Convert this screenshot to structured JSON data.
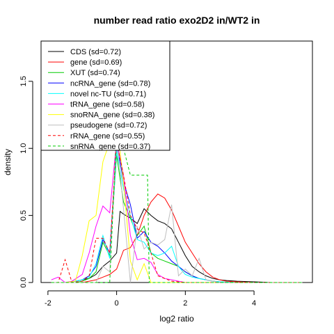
{
  "chart_data": {
    "type": "line",
    "title": "number read ratio exo2D2 in/WT2 in",
    "xlabel": "log2 ratio",
    "ylabel": "density",
    "xlim": [
      -2.2,
      5.7
    ],
    "ylim": [
      0,
      1.8
    ],
    "xticks": [
      {
        "value": -2,
        "label": "-2"
      },
      {
        "value": 0,
        "label": "0"
      },
      {
        "value": 2,
        "label": "2"
      },
      {
        "value": 4,
        "label": "4"
      }
    ],
    "yticks": [
      {
        "value": 0,
        "label": "0.0"
      },
      {
        "value": 0.5,
        "label": "0.5"
      },
      {
        "value": 1.0,
        "label": "1.0"
      },
      {
        "value": 1.5,
        "label": "1.5"
      }
    ],
    "grid": false,
    "legend_position": "top-left",
    "series": [
      {
        "name": "CDS (sd=0.72)",
        "color": "#000000",
        "dash": "solid",
        "x": [
          -1.9,
          -1.5,
          -1.2,
          -1.0,
          -0.8,
          -0.6,
          -0.4,
          -0.2,
          0.0,
          0.1,
          0.2,
          0.4,
          0.6,
          0.8,
          1.0,
          1.2,
          1.4,
          1.6,
          1.8,
          2.0,
          2.2,
          2.4,
          2.6,
          2.8,
          3.0,
          3.2,
          3.5,
          4.0,
          4.5,
          5.0,
          5.4
        ],
        "y": [
          0,
          0,
          0.01,
          0.02,
          0.03,
          0.06,
          0.12,
          0.16,
          0.22,
          0.53,
          0.51,
          0.48,
          0.44,
          0.55,
          0.5,
          0.46,
          0.44,
          0.4,
          0.3,
          0.2,
          0.12,
          0.08,
          0.05,
          0.03,
          0.02,
          0.015,
          0.01,
          0.005,
          0,
          0,
          0
        ]
      },
      {
        "name": "gene (sd=0.69)",
        "color": "#ff0000",
        "dash": "solid",
        "x": [
          -1.9,
          -1.5,
          -1.2,
          -1.0,
          -0.8,
          -0.6,
          -0.4,
          -0.2,
          0.0,
          0.2,
          0.4,
          0.6,
          0.8,
          1.0,
          1.2,
          1.4,
          1.6,
          1.8,
          2.0,
          2.2,
          2.4,
          2.6,
          2.8,
          3.0,
          3.2,
          3.5,
          4.0,
          4.5,
          5.0,
          5.4
        ],
        "y": [
          0,
          0,
          0,
          0,
          0.01,
          0.02,
          0.04,
          0.06,
          0.1,
          0.24,
          0.26,
          0.35,
          0.5,
          0.6,
          0.66,
          0.63,
          0.54,
          0.42,
          0.3,
          0.22,
          0.14,
          0.08,
          0.04,
          0.02,
          0.01,
          0.005,
          0,
          0,
          0,
          0
        ]
      },
      {
        "name": "XUT (sd=0.74)",
        "color": "#00cc00",
        "dash": "solid",
        "x": [
          -1.9,
          -1.5,
          -1.2,
          -1.0,
          -0.8,
          -0.6,
          -0.4,
          -0.2,
          0.0,
          0.2,
          0.4,
          0.6,
          0.8,
          1.0,
          1.2,
          1.4,
          1.6,
          1.8,
          2.0,
          2.2,
          2.4,
          2.6,
          2.8,
          3.0,
          3.5,
          4.0,
          5.0,
          5.4
        ],
        "y": [
          0,
          0,
          0,
          0.01,
          0.03,
          0.08,
          0.3,
          0.2,
          0.95,
          0.6,
          0.48,
          0.35,
          0.42,
          0.22,
          0.18,
          0.16,
          0.14,
          0.12,
          0.08,
          0.05,
          0.03,
          0.02,
          0.01,
          0.005,
          0,
          0,
          0,
          0
        ]
      },
      {
        "name": "ncRNA_gene (sd=0.78)",
        "color": "#0000ff",
        "dash": "solid",
        "x": [
          -1.9,
          -1.5,
          -1.2,
          -1.0,
          -0.8,
          -0.6,
          -0.4,
          -0.2,
          0.0,
          0.1,
          0.2,
          0.4,
          0.6,
          0.8,
          1.0,
          1.2,
          1.4,
          1.6,
          1.8,
          2.0,
          2.2,
          2.4,
          2.6,
          2.8,
          3.0,
          3.2,
          3.5,
          4.0,
          5.0,
          5.4
        ],
        "y": [
          0,
          0,
          0.01,
          0.02,
          0.05,
          0.12,
          0.32,
          0.22,
          1.02,
          0.9,
          0.75,
          0.58,
          0.33,
          0.38,
          0.3,
          0.27,
          0.22,
          0.16,
          0.12,
          0.08,
          0.05,
          0.03,
          0.02,
          0.01,
          0.005,
          0,
          0,
          0,
          0,
          0
        ]
      },
      {
        "name": "novel nc-TU (sd=0.71)",
        "color": "#00ffff",
        "dash": "solid",
        "x": [
          -1.9,
          -1.5,
          -1.2,
          -1.0,
          -0.8,
          -0.6,
          -0.4,
          -0.2,
          0.0,
          0.2,
          0.4,
          0.6,
          0.8,
          1.0,
          1.2,
          1.4,
          1.6,
          1.8,
          2.0,
          2.2,
          2.4,
          2.6,
          2.8,
          3.0,
          3.5,
          4.0,
          5.0,
          5.4
        ],
        "y": [
          0,
          0,
          0.01,
          0.02,
          0.04,
          0.14,
          0.35,
          0.18,
          0.98,
          0.7,
          0.5,
          0.32,
          0.3,
          0.22,
          0.2,
          0.22,
          0.27,
          0.12,
          0.06,
          0.04,
          0.03,
          0.02,
          0.01,
          0.005,
          0,
          0,
          0,
          0
        ]
      },
      {
        "name": "tRNA_gene (sd=0.58)",
        "color": "#ff00ff",
        "dash": "solid",
        "x": [
          -1.9,
          -1.7,
          -1.5,
          -1.3,
          -1.0,
          -0.8,
          -0.6,
          -0.4,
          -0.2,
          0.0,
          0.2,
          0.4,
          0.6,
          0.8,
          1.0,
          1.2,
          1.4,
          1.6,
          1.8,
          2.0,
          2.4,
          3.0,
          4.0,
          5.4
        ],
        "y": [
          0.02,
          0.04,
          0,
          0.01,
          0.06,
          0.22,
          0.42,
          0.57,
          0.52,
          1.06,
          0.8,
          0.35,
          0.17,
          0.18,
          0.15,
          0.06,
          0.03,
          0.02,
          0.01,
          0,
          0,
          0,
          0,
          0
        ]
      },
      {
        "name": "snoRNA_gene (sd=0.38)",
        "color": "#ffff00",
        "dash": "solid",
        "x": [
          -1.9,
          -1.5,
          -1.2,
          -1.0,
          -0.8,
          -0.6,
          -0.4,
          -0.2,
          0.0,
          0.2,
          0.4,
          0.6,
          0.8,
          1.0,
          1.2,
          1.5,
          2.0,
          3.0,
          4.0,
          5.4
        ],
        "y": [
          0,
          0,
          0.01,
          0.2,
          0.46,
          0.5,
          0.9,
          1.05,
          1.2,
          0.75,
          0.16,
          0.02,
          0.14,
          0,
          0,
          0,
          0,
          0,
          0,
          0
        ]
      },
      {
        "name": "pseudogene (sd=0.72)",
        "color": "#bebebe",
        "dash": "solid",
        "x": [
          -1.9,
          -1.5,
          -1.2,
          -1.0,
          -0.8,
          -0.6,
          -0.4,
          -0.2,
          0.0,
          0.2,
          0.4,
          0.6,
          0.8,
          1.0,
          1.2,
          1.4,
          1.6,
          1.8,
          2.0,
          2.2,
          2.4,
          2.6,
          2.8,
          3.0,
          3.5,
          4.0,
          5.0,
          5.4
        ],
        "y": [
          0,
          0,
          0,
          0,
          0,
          0,
          0.12,
          0.08,
          1.1,
          0.55,
          0,
          0.42,
          0.25,
          0.3,
          0.28,
          0.32,
          0.58,
          0.05,
          0.1,
          0.05,
          0.18,
          0.02,
          0.01,
          0,
          0,
          0,
          0,
          0
        ]
      },
      {
        "name": "rRNA_gene (sd=0.55)",
        "color": "#ff0000",
        "dash": "dashed",
        "x": [
          -1.9,
          -1.7,
          -1.5,
          -1.3,
          -1.0,
          -0.8,
          -0.6,
          -0.4,
          -0.2,
          0.0,
          0.2,
          0.4,
          0.6,
          0.8,
          1.0,
          1.2,
          1.6,
          2.0,
          3.0,
          4.0,
          5.4
        ],
        "y": [
          0,
          0,
          0.17,
          0,
          0.01,
          0.05,
          0.33,
          0.33,
          0.22,
          1.05,
          0.8,
          0.5,
          0.4,
          0.37,
          0.22,
          0.05,
          0.01,
          0,
          0,
          0,
          0
        ]
      },
      {
        "name": "snRNA_gene (sd=0.37)",
        "color": "#00cc00",
        "dash": "dashed",
        "x": [
          -1.9,
          -1.5,
          -1.0,
          -0.5,
          -0.2,
          0.0,
          0.2,
          0.4,
          0.45,
          0.9,
          0.95,
          1.2,
          1.5,
          2.0,
          3.0,
          4.0,
          5.4
        ],
        "y": [
          0,
          0,
          0,
          0,
          0,
          1.15,
          1.0,
          0.8,
          0.8,
          0.8,
          0,
          0,
          0,
          0,
          0,
          0,
          0
        ]
      }
    ]
  }
}
